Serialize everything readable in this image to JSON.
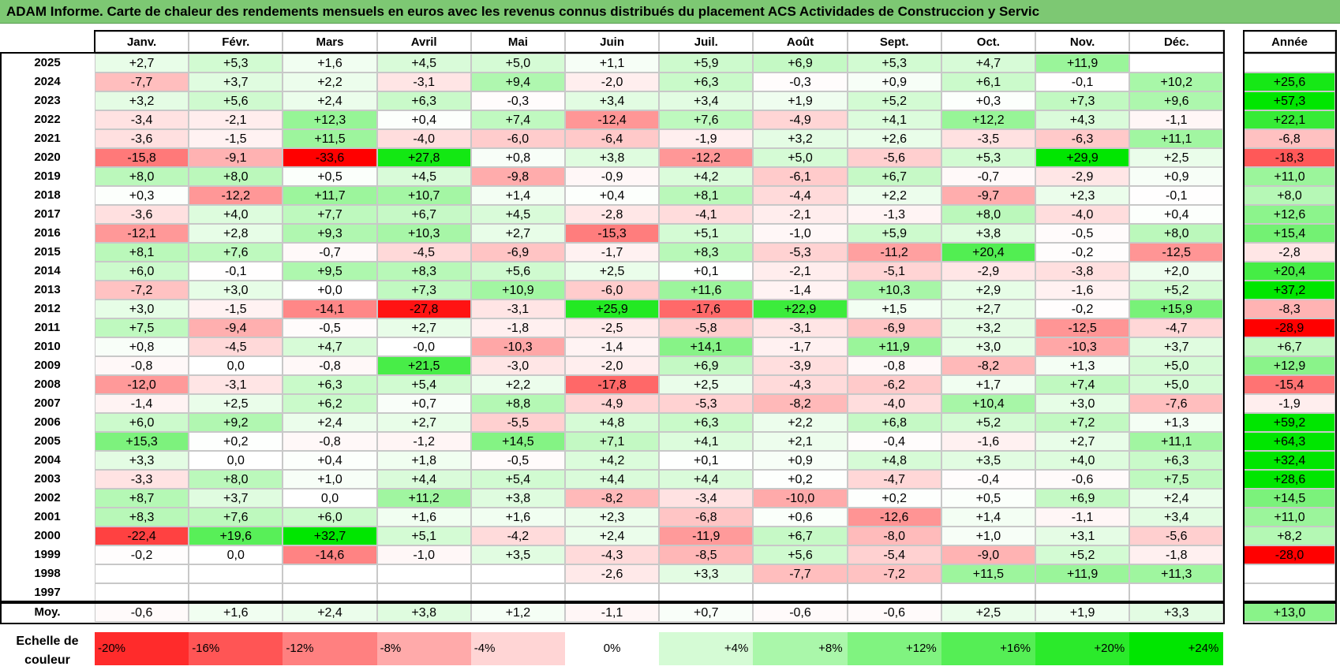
{
  "title": "ADAM Informe. Carte de chaleur des rendements mensuels en euros avec les revenus connus distribués du placement ACS Actividades de Construccion y Servic",
  "chart_data": {
    "type": "heatmap",
    "months": [
      "Janv.",
      "Févr.",
      "Mars",
      "Avril",
      "Mai",
      "Juin",
      "Juil.",
      "Août",
      "Sept.",
      "Oct.",
      "Nov.",
      "Déc."
    ],
    "year_header": "Année",
    "rows": [
      {
        "year": "2025",
        "values": [
          "+2,7",
          "+5,3",
          "+1,6",
          "+4,5",
          "+5,0",
          "+1,1",
          "+5,9",
          "+6,9",
          "+5,3",
          "+4,7",
          "+11,9",
          ""
        ],
        "annual": ""
      },
      {
        "year": "2024",
        "values": [
          "-7,7",
          "+3,7",
          "+2,2",
          "-3,1",
          "+9,4",
          "-2,0",
          "+6,3",
          "-0,3",
          "+0,9",
          "+6,1",
          "-0,1",
          "+10,2"
        ],
        "annual": "+25,6"
      },
      {
        "year": "2023",
        "values": [
          "+3,2",
          "+5,6",
          "+2,4",
          "+6,3",
          "-0,3",
          "+3,4",
          "+3,4",
          "+1,9",
          "+5,2",
          "+0,3",
          "+7,3",
          "+9,6"
        ],
        "annual": "+57,3"
      },
      {
        "year": "2022",
        "values": [
          "-3,4",
          "-2,1",
          "+12,3",
          "+0,4",
          "+7,4",
          "-12,4",
          "+7,6",
          "-4,9",
          "+4,1",
          "+12,2",
          "+4,3",
          "-1,1"
        ],
        "annual": "+22,1"
      },
      {
        "year": "2021",
        "values": [
          "-3,6",
          "-1,5",
          "+11,5",
          "-4,0",
          "-6,0",
          "-6,4",
          "-1,9",
          "+3,2",
          "+2,6",
          "-3,5",
          "-6,3",
          "+11,1"
        ],
        "annual": "-6,8"
      },
      {
        "year": "2020",
        "values": [
          "-15,8",
          "-9,1",
          "-33,6",
          "+27,8",
          "+0,8",
          "+3,8",
          "-12,2",
          "+5,0",
          "-5,6",
          "+5,3",
          "+29,9",
          "+2,5"
        ],
        "annual": "-18,3"
      },
      {
        "year": "2019",
        "values": [
          "+8,0",
          "+8,0",
          "+0,5",
          "+4,5",
          "-9,8",
          "-0,9",
          "+4,2",
          "-6,1",
          "+6,7",
          "-0,7",
          "-2,9",
          "+0,9"
        ],
        "annual": "+11,0"
      },
      {
        "year": "2018",
        "values": [
          "+0,3",
          "-12,2",
          "+11,7",
          "+10,7",
          "+1,4",
          "+0,4",
          "+8,1",
          "-4,4",
          "+2,2",
          "-9,7",
          "+2,3",
          "-0,1"
        ],
        "annual": "+8,0"
      },
      {
        "year": "2017",
        "values": [
          "-3,6",
          "+4,0",
          "+7,7",
          "+6,7",
          "+4,5",
          "-2,8",
          "-4,1",
          "-2,1",
          "-1,3",
          "+8,0",
          "-4,0",
          "+0,4"
        ],
        "annual": "+12,6"
      },
      {
        "year": "2016",
        "values": [
          "-12,1",
          "+2,8",
          "+9,3",
          "+10,3",
          "+2,7",
          "-15,3",
          "+5,1",
          "-1,0",
          "+5,9",
          "+3,8",
          "-0,5",
          "+8,0"
        ],
        "annual": "+15,4"
      },
      {
        "year": "2015",
        "values": [
          "+8,1",
          "+7,6",
          "-0,7",
          "-4,5",
          "-6,9",
          "-1,7",
          "+8,3",
          "-5,3",
          "-11,2",
          "+20,4",
          "-0,2",
          "-12,5"
        ],
        "annual": "-2,8"
      },
      {
        "year": "2014",
        "values": [
          "+6,0",
          "-0,1",
          "+9,5",
          "+8,3",
          "+5,6",
          "+2,5",
          "+0,1",
          "-2,1",
          "-5,1",
          "-2,9",
          "-3,8",
          "+2,0"
        ],
        "annual": "+20,4"
      },
      {
        "year": "2013",
        "values": [
          "-7,2",
          "+3,0",
          "+0,0",
          "+7,3",
          "+10,9",
          "-6,0",
          "+11,6",
          "-1,4",
          "+10,3",
          "+2,9",
          "-1,6",
          "+5,2"
        ],
        "annual": "+37,2"
      },
      {
        "year": "2012",
        "values": [
          "+3,0",
          "-1,5",
          "-14,1",
          "-27,8",
          "-3,1",
          "+25,9",
          "-17,6",
          "+22,9",
          "+1,5",
          "+2,7",
          "-0,2",
          "+15,9"
        ],
        "annual": "-8,3"
      },
      {
        "year": "2011",
        "values": [
          "+7,5",
          "-9,4",
          "-0,5",
          "+2,7",
          "-1,8",
          "-2,5",
          "-5,8",
          "-3,1",
          "-6,9",
          "+3,2",
          "-12,5",
          "-4,7"
        ],
        "annual": "-28,9"
      },
      {
        "year": "2010",
        "values": [
          "+0,8",
          "-4,5",
          "+4,7",
          "-0,0",
          "-10,3",
          "-1,4",
          "+14,1",
          "-1,7",
          "+11,9",
          "+3,0",
          "-10,3",
          "+3,7"
        ],
        "annual": "+6,7"
      },
      {
        "year": "2009",
        "values": [
          "-0,8",
          "0,0",
          "-0,8",
          "+21,5",
          "-3,0",
          "-2,0",
          "+6,9",
          "-3,9",
          "-0,8",
          "-8,2",
          "+1,3",
          "+5,0"
        ],
        "annual": "+12,9"
      },
      {
        "year": "2008",
        "values": [
          "-12,0",
          "-3,1",
          "+6,3",
          "+5,4",
          "+2,2",
          "-17,8",
          "+2,5",
          "-4,3",
          "-6,2",
          "+1,7",
          "+7,4",
          "+5,0"
        ],
        "annual": "-15,4"
      },
      {
        "year": "2007",
        "values": [
          "-1,4",
          "+2,5",
          "+6,2",
          "+0,7",
          "+8,8",
          "-4,9",
          "-5,3",
          "-8,2",
          "-4,0",
          "+10,4",
          "+3,0",
          "-7,6"
        ],
        "annual": "-1,9"
      },
      {
        "year": "2006",
        "values": [
          "+6,0",
          "+9,2",
          "+2,4",
          "+2,7",
          "-5,5",
          "+4,8",
          "+6,3",
          "+2,2",
          "+6,8",
          "+5,2",
          "+7,2",
          "+1,3"
        ],
        "annual": "+59,2"
      },
      {
        "year": "2005",
        "values": [
          "+15,3",
          "+0,2",
          "-0,8",
          "-1,2",
          "+14,5",
          "+7,1",
          "+4,1",
          "+2,1",
          "-0,4",
          "-1,6",
          "+2,7",
          "+11,1"
        ],
        "annual": "+64,3"
      },
      {
        "year": "2004",
        "values": [
          "+3,3",
          "0,0",
          "+0,4",
          "+1,8",
          "-0,5",
          "+4,2",
          "+0,1",
          "+0,9",
          "+4,8",
          "+3,5",
          "+4,0",
          "+6,3"
        ],
        "annual": "+32,4"
      },
      {
        "year": "2003",
        "values": [
          "-3,3",
          "+8,0",
          "+1,0",
          "+4,4",
          "+5,4",
          "+4,4",
          "+4,4",
          "+0,2",
          "-4,7",
          "-0,4",
          "-0,6",
          "+7,5"
        ],
        "annual": "+28,6"
      },
      {
        "year": "2002",
        "values": [
          "+8,7",
          "+3,7",
          "0,0",
          "+11,2",
          "+3,8",
          "-8,2",
          "-3,4",
          "-10,0",
          "+0,2",
          "+0,5",
          "+6,9",
          "+2,4"
        ],
        "annual": "+14,5"
      },
      {
        "year": "2001",
        "values": [
          "+8,3",
          "+7,6",
          "+6,0",
          "+1,6",
          "+1,6",
          "+2,3",
          "-6,8",
          "+0,6",
          "-12,6",
          "+1,4",
          "-1,1",
          "+3,4"
        ],
        "annual": "+11,0"
      },
      {
        "year": "2000",
        "values": [
          "-22,4",
          "+19,6",
          "+32,7",
          "+5,1",
          "-4,2",
          "+2,4",
          "-11,9",
          "+6,7",
          "-8,0",
          "+1,0",
          "+3,1",
          "-5,6"
        ],
        "annual": "+8,2"
      },
      {
        "year": "1999",
        "values": [
          "-0,2",
          "0,0",
          "-14,6",
          "-1,0",
          "+3,5",
          "-4,3",
          "-8,5",
          "+5,6",
          "-5,4",
          "-9,0",
          "+5,2",
          "-1,8"
        ],
        "annual": "-28,0"
      },
      {
        "year": "1998",
        "values": [
          "",
          "",
          "",
          "",
          "",
          "-2,6",
          "+3,3",
          "-7,7",
          "-7,2",
          "+11,5",
          "+11,9",
          "+11,3"
        ],
        "annual": ""
      },
      {
        "year": "1997",
        "values": [
          "",
          "",
          "",
          "",
          "",
          "",
          "",
          "",
          "",
          "",
          "",
          ""
        ],
        "annual": ""
      }
    ],
    "average": {
      "label": "Moy.",
      "values": [
        "-0,6",
        "+1,6",
        "+2,4",
        "+3,8",
        "+1,2",
        "-1,1",
        "+0,7",
        "-0,6",
        "-0,6",
        "+2,5",
        "+1,9",
        "+3,3"
      ],
      "annual": "+13,0"
    },
    "color_scale": {
      "label": "Echelle de couleur",
      "steps": [
        "-20%",
        "-16%",
        "-12%",
        "-8%",
        "-4%",
        "0%",
        "+4%",
        "+8%",
        "+12%",
        "+16%",
        "+20%",
        "+24%"
      ]
    },
    "colors": {
      "negative": "#ff0000",
      "neutral": "#ffffff",
      "positive": "#00e600",
      "title_bg": "#7dc873"
    }
  }
}
